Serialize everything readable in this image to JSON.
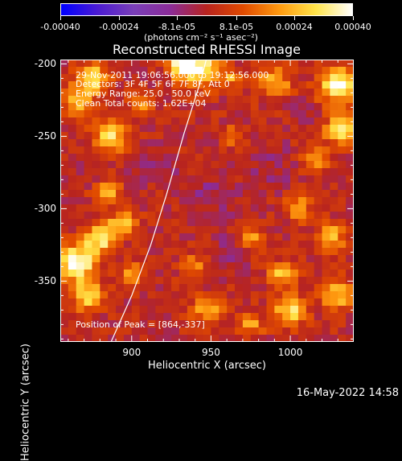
{
  "colorbar": {
    "ticks": [
      {
        "label": "-0.00040",
        "value": -0.0004
      },
      {
        "label": "-0.00024",
        "value": -0.00024
      },
      {
        "label": "-8.1e-05",
        "value": -8.1e-05
      },
      {
        "label": "8.1e-05",
        "value": 8.1e-05
      },
      {
        "label": "0.00024",
        "value": 0.00024
      },
      {
        "label": "0.00040",
        "value": 0.0004
      }
    ],
    "units": "(photons cm⁻² s⁻¹ asec⁻²)",
    "range": [
      -0.0004,
      0.0004
    ],
    "colors": [
      "#0000ff",
      "#4b1bd2",
      "#7a3fb8",
      "#8b2c98",
      "#b8241f",
      "#e04a00",
      "#ff9a10",
      "#ffe44a",
      "#ffffff"
    ]
  },
  "footer": {
    "date": "16-May-2022 14:58"
  },
  "chart_data": {
    "type": "heatmap",
    "title": "Reconstructed RHESSI Image",
    "xlabel": "Heliocentric X (arcsec)",
    "ylabel": "Heliocentric Y (arcsec)",
    "xlim": [
      855,
      1040
    ],
    "ylim": [
      -392,
      -197
    ],
    "xticks": [
      {
        "label": "900",
        "value": 900
      },
      {
        "label": "950",
        "value": 950
      },
      {
        "label": "1000",
        "value": 1000
      }
    ],
    "yticks": [
      {
        "label": "-200",
        "value": -200
      },
      {
        "label": "-250",
        "value": -250
      },
      {
        "label": "-300",
        "value": -300
      },
      {
        "label": "-350",
        "value": -350
      }
    ],
    "annotations": [
      "29-Nov-2011 19:06:56.000 to 19:12:56.000",
      "Detectors: 3F 4F 5F 6F 7F 8F, Att 0",
      "Energy Range: 25.0 - 50.0 keV",
      "Clean     Total counts: 1.62E+04"
    ],
    "peak_label": "Position of Peak = [864,-337]",
    "peak": [
      864,
      -337
    ],
    "limb_curve": [
      [
        887,
        -392
      ],
      [
        900,
        -360
      ],
      [
        912,
        -325
      ],
      [
        922,
        -290
      ],
      [
        933,
        -248
      ],
      [
        944,
        -210
      ],
      [
        947,
        -197
      ]
    ],
    "hot_spots": [
      {
        "x": 876,
        "y": -210,
        "r": 10,
        "v": 0.0003
      },
      {
        "x": 887,
        "y": -250,
        "r": 11,
        "v": 0.00028
      },
      {
        "x": 866,
        "y": -225,
        "r": 10,
        "v": 0.00022
      },
      {
        "x": 905,
        "y": -227,
        "r": 7,
        "v": 0.0002
      },
      {
        "x": 943,
        "y": -203,
        "r": 12,
        "v": 0.00038
      },
      {
        "x": 930,
        "y": -200,
        "r": 8,
        "v": 0.00034
      },
      {
        "x": 990,
        "y": -213,
        "r": 10,
        "v": 0.00024
      },
      {
        "x": 1030,
        "y": -215,
        "r": 12,
        "v": 0.00036
      },
      {
        "x": 1032,
        "y": -245,
        "r": 10,
        "v": 0.0003
      },
      {
        "x": 1015,
        "y": -265,
        "r": 9,
        "v": 0.0002
      },
      {
        "x": 865,
        "y": -337,
        "r": 12,
        "v": 0.0004
      },
      {
        "x": 880,
        "y": -320,
        "r": 10,
        "v": 0.00034
      },
      {
        "x": 895,
        "y": -310,
        "r": 8,
        "v": 0.00028
      },
      {
        "x": 872,
        "y": -360,
        "r": 10,
        "v": 0.0003
      },
      {
        "x": 885,
        "y": -290,
        "r": 8,
        "v": 0.00024
      },
      {
        "x": 900,
        "y": -345,
        "r": 7,
        "v": 0.0002
      },
      {
        "x": 940,
        "y": -340,
        "r": 8,
        "v": 0.0002
      },
      {
        "x": 948,
        "y": -370,
        "r": 9,
        "v": 0.00022
      },
      {
        "x": 975,
        "y": -320,
        "r": 8,
        "v": 0.00022
      },
      {
        "x": 995,
        "y": -345,
        "r": 8,
        "v": 0.00026
      },
      {
        "x": 1000,
        "y": -370,
        "r": 10,
        "v": 0.0003
      },
      {
        "x": 1005,
        "y": -300,
        "r": 8,
        "v": 0.00022
      },
      {
        "x": 1025,
        "y": -320,
        "r": 9,
        "v": 0.00026
      },
      {
        "x": 1030,
        "y": -360,
        "r": 10,
        "v": 0.00026
      },
      {
        "x": 975,
        "y": -380,
        "r": 8,
        "v": 0.00018
      },
      {
        "x": 965,
        "y": -250,
        "r": 7,
        "v": 0.00016
      },
      {
        "x": 962,
        "y": -210,
        "r": 6,
        "v": 0.00018
      }
    ],
    "cold_spots": [
      {
        "x": 915,
        "y": -270,
        "r": 14,
        "v": -6e-05
      },
      {
        "x": 950,
        "y": -290,
        "r": 18,
        "v": -6e-05
      },
      {
        "x": 990,
        "y": -270,
        "r": 16,
        "v": -6e-05
      },
      {
        "x": 960,
        "y": -330,
        "r": 14,
        "v": -5e-05
      },
      {
        "x": 900,
        "y": -200,
        "r": 10,
        "v": -4e-05
      },
      {
        "x": 1010,
        "y": -235,
        "r": 10,
        "v": -4e-05
      },
      {
        "x": 870,
        "y": -275,
        "r": 8,
        "v": -3e-05
      }
    ],
    "background": 1e-05,
    "grid": false
  }
}
